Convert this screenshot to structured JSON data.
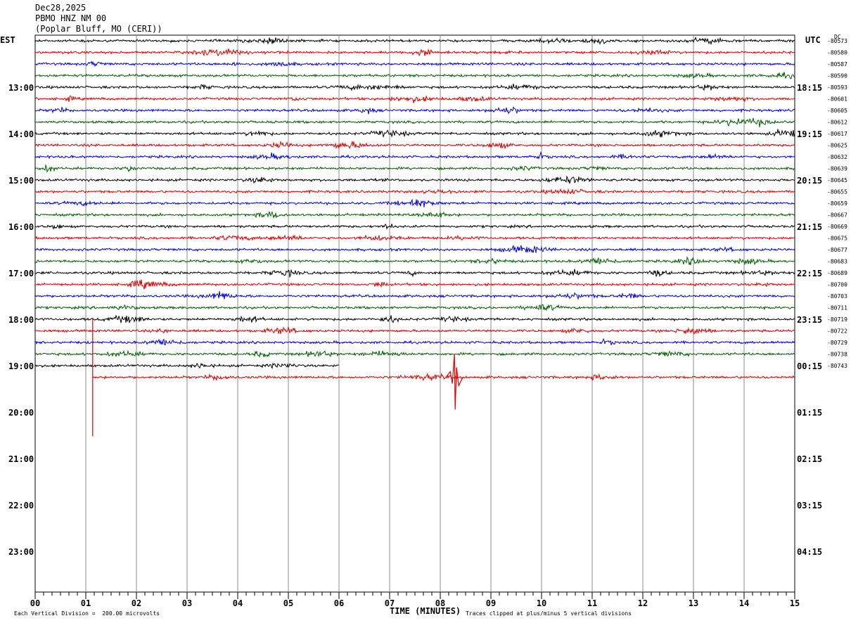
{
  "header": {
    "date": "Dec28,2025",
    "station": "PBMO HNZ NM 00",
    "location": "(Poplar Bluff, MO (CERI))"
  },
  "labels": {
    "left_tz": "EST",
    "right_tz": "UTC",
    "dc": "DC"
  },
  "chart_data": {
    "type": "line",
    "xlabel": "TIME (MINUTES)",
    "xlim": [
      0,
      15
    ],
    "x_ticks": [
      "00",
      "01",
      "02",
      "03",
      "04",
      "05",
      "06",
      "07",
      "08",
      "09",
      "10",
      "11",
      "12",
      "13",
      "14",
      "15"
    ],
    "left_hour_labels": [
      "13:00",
      "14:00",
      "15:00",
      "16:00",
      "17:00",
      "18:00",
      "19:00",
      "20:00",
      "21:00",
      "22:00",
      "23:00"
    ],
    "right_hour_labels": [
      "18:15",
      "19:15",
      "20:15",
      "21:15",
      "22:15",
      "23:15",
      "00:15",
      "01:15",
      "02:15",
      "03:15",
      "04:15"
    ],
    "dc_offsets": [
      "-80573",
      "-80580",
      "-80587",
      "-80590",
      "-80593",
      "-80601",
      "-80605",
      "-80612",
      "-80617",
      "-80625",
      "-80632",
      "-80639",
      "-80645",
      "-80655",
      "-80659",
      "-80667",
      "-80669",
      "-80675",
      "-80677",
      "-80683",
      "-80689",
      "-80700",
      "-80703",
      "-80711",
      "-80719",
      "-80722",
      "-80729",
      "-80738",
      "-80743"
    ],
    "trace_colors": [
      "#000000",
      "#e00000",
      "#0000e0",
      "#006000"
    ],
    "trace_count": 30,
    "last_trace_start_min": 1.15,
    "trace_end_min": {
      "28": 6.0
    },
    "events": [
      {
        "trace": 29,
        "minute": 8.28,
        "label": "spike"
      },
      {
        "trace": 29,
        "minute": 1.15,
        "label": "step"
      }
    ],
    "scale_note": "Each Vertical Division =  200.00 microvolts",
    "clip_note": "Traces clipped at plus/minus 5 vertical divisions"
  }
}
